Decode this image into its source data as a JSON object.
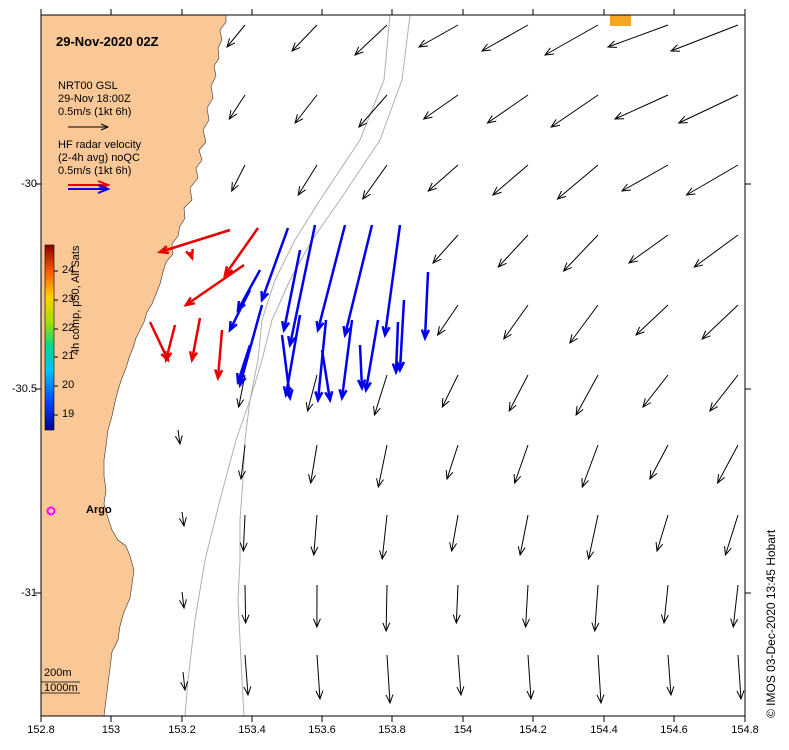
{
  "map": {
    "title": "29-Nov-2020 02Z",
    "x_ticks": [
      "152.8",
      "153",
      "153.2",
      "153.4",
      "153.6",
      "153.8",
      "154",
      "154.2",
      "154.4",
      "154.6",
      "154.8"
    ],
    "y_ticks": [
      "-30",
      "-30.5",
      "-31"
    ],
    "legend": {
      "model_line1": "NRT00 GSL",
      "model_line2": "29-Nov 18:00Z",
      "model_scale": "0.5m/s (1kt 6h)",
      "radar_line1": "HF radar velocity",
      "radar_line2": "(2-4h avg) noQC",
      "radar_scale": "0.5m/s (1kt 6h)"
    },
    "colorbar": {
      "title": "4h comp, p50, All Sats",
      "labels": [
        "24",
        "23",
        "22",
        "21",
        "20",
        "19"
      ]
    },
    "argo_label": "Argo",
    "depth_labels": [
      "200m",
      "1000m"
    ],
    "credit": "© IMOS 03-Dec-2020 13:45 Hobart",
    "colors": {
      "land": "#f9c896",
      "model_arrow": "#000000",
      "radar_blue": "#0000ee",
      "radar_red": "#e80000",
      "argo": "#ff00ff",
      "bathy": "#b0b0b0",
      "sst_patch": "#f5a623"
    }
  }
}
